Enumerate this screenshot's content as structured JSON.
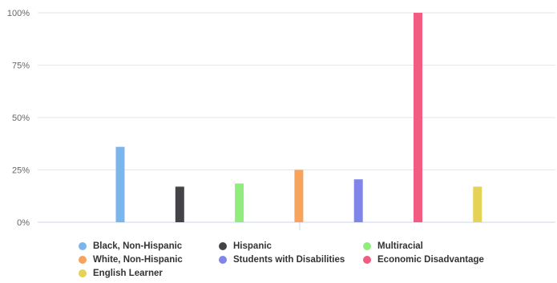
{
  "chart_data": {
    "type": "bar",
    "categories": [
      "Black, Non-Hispanic",
      "Hispanic",
      "Multiracial",
      "White, Non-Hispanic",
      "Students with Disabilities",
      "Economic Disadvantage",
      "English Learner"
    ],
    "series": [
      {
        "name": "Black, Non-Hispanic",
        "value": 36,
        "color": "#7cb5ec"
      },
      {
        "name": "Hispanic",
        "value": 17,
        "color": "#434348"
      },
      {
        "name": "Multiracial",
        "value": 18.5,
        "color": "#90ed7d"
      },
      {
        "name": "White, Non-Hispanic",
        "value": 25,
        "color": "#f7a35c"
      },
      {
        "name": "Students with Disabilities",
        "value": 20.5,
        "color": "#8085e9"
      },
      {
        "name": "Economic Disadvantage",
        "value": 100,
        "color": "#f15c80"
      },
      {
        "name": "English Learner",
        "value": 17,
        "color": "#e4d354"
      }
    ],
    "ylim": [
      0,
      100
    ],
    "yticks": [
      0,
      25,
      50,
      75,
      100
    ],
    "ytick_labels": [
      "0%",
      "25%",
      "50%",
      "75%",
      "100%"
    ],
    "grid": true,
    "legend_position": "bottom",
    "title": "",
    "xlabel": "",
    "ylabel": ""
  }
}
